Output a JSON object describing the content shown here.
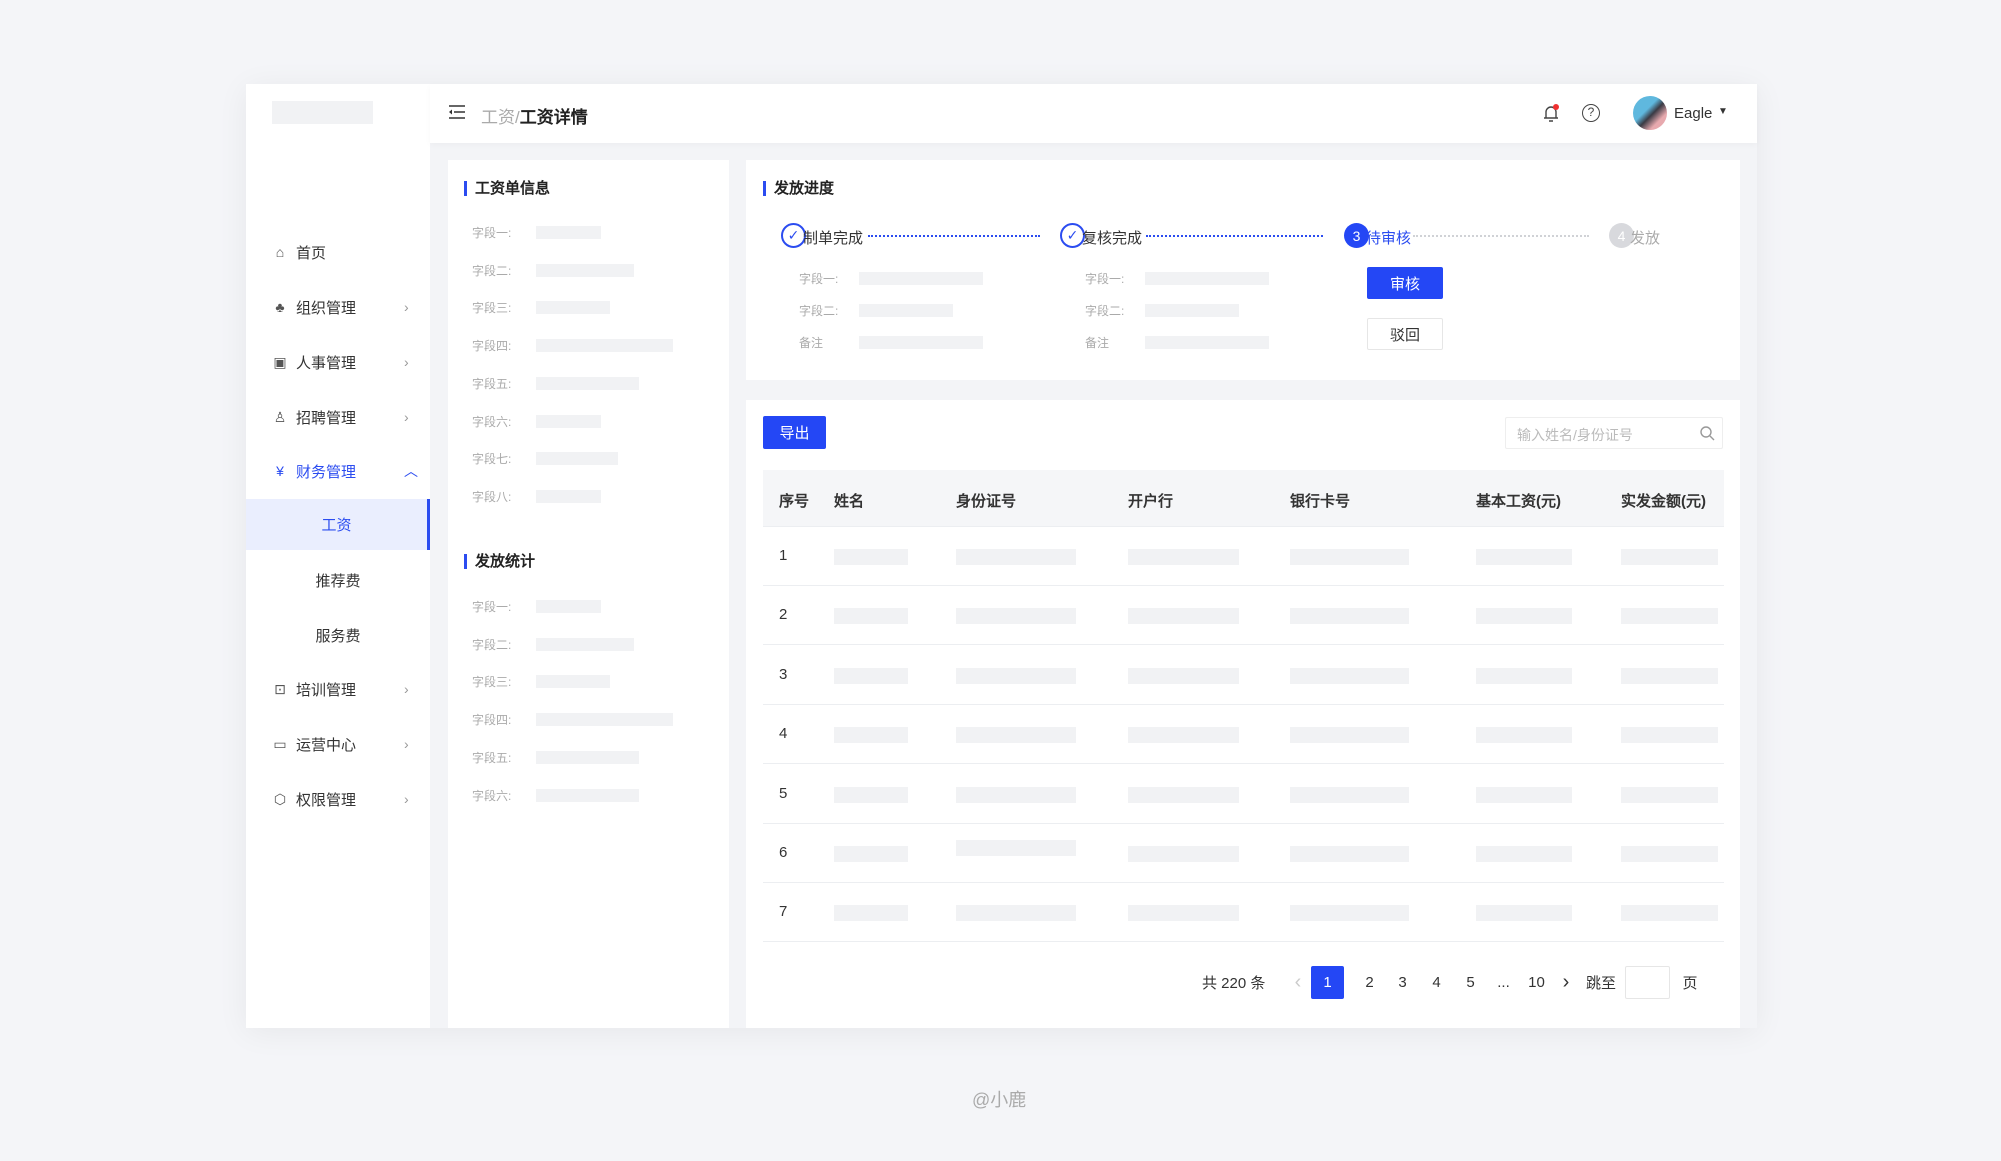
{
  "colors": {
    "accent": "#2447f5",
    "background": "#f3f4f7"
  },
  "header": {
    "breadcrumb_parent": "工资",
    "breadcrumb_sep": "/",
    "breadcrumb_current": "工资详情",
    "user_name": "Eagle",
    "icons": [
      "menu-fold-icon",
      "bell-icon",
      "help-icon",
      "avatar",
      "caret-down-icon"
    ]
  },
  "sidebar": {
    "items": [
      {
        "label": "首页",
        "icon": "home-icon"
      },
      {
        "label": "组织管理",
        "icon": "org-icon",
        "chevron": "right"
      },
      {
        "label": "人事管理",
        "icon": "personnel-icon",
        "chevron": "right"
      },
      {
        "label": "招聘管理",
        "icon": "recruit-icon",
        "chevron": "right"
      },
      {
        "label": "财务管理",
        "icon": "finance-icon",
        "chevron": "up",
        "active": true
      },
      {
        "label": "工资",
        "sub": true,
        "selected": true
      },
      {
        "label": "推荐费",
        "sub": true
      },
      {
        "label": "服务费",
        "sub": true
      },
      {
        "label": "培训管理",
        "icon": "training-icon",
        "chevron": "right"
      },
      {
        "label": "运营中心",
        "icon": "operations-icon",
        "chevron": "right"
      },
      {
        "label": "权限管理",
        "icon": "permission-icon",
        "chevron": "right"
      }
    ]
  },
  "salary_info": {
    "title": "工资单信息",
    "fields": [
      "字段一:",
      "字段二:",
      "字段三:",
      "字段四:",
      "字段五:",
      "字段六:",
      "字段七:",
      "字段八:"
    ]
  },
  "payout_stats": {
    "title": "发放统计",
    "fields": [
      "字段一:",
      "字段二:",
      "字段三:",
      "字段四:",
      "字段五:",
      "字段六:"
    ]
  },
  "progress": {
    "title": "发放进度",
    "steps": [
      {
        "label": "制单完成",
        "status": "done"
      },
      {
        "label": "复核完成",
        "status": "done"
      },
      {
        "label": "待审核",
        "number": "3",
        "status": "current"
      },
      {
        "label": "发放",
        "number": "4",
        "status": "pending"
      }
    ],
    "step1_fields": [
      "字段一:",
      "字段二:",
      "备注"
    ],
    "step2_fields": [
      "字段一:",
      "字段二:",
      "备注"
    ],
    "approve_label": "审核",
    "reject_label": "驳回"
  },
  "table": {
    "export_label": "导出",
    "search_placeholder": "输入姓名/身份证号",
    "columns": [
      "序号",
      "姓名",
      "身份证号",
      "开户行",
      "银行卡号",
      "基本工资(元)",
      "实发金额(元)"
    ],
    "rows": [
      "1",
      "2",
      "3",
      "4",
      "5",
      "6",
      "7"
    ]
  },
  "pagination": {
    "total": "共 220 条",
    "pages": [
      "1",
      "2",
      "3",
      "4",
      "5",
      "...",
      "10"
    ],
    "current": "1",
    "jump_label": "跳至",
    "page_suffix": "页",
    "jump_value": ""
  },
  "footer": {
    "credit": "@小鹿"
  }
}
